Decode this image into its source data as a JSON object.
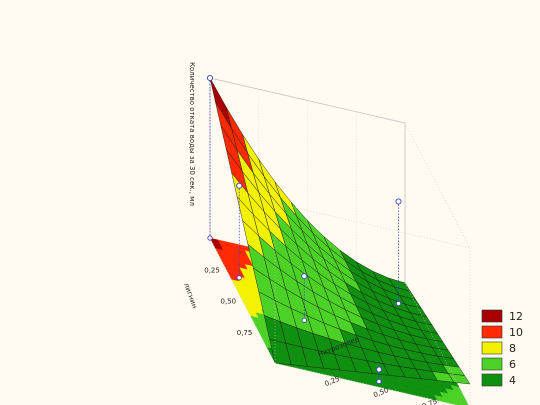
{
  "chart_data": {
    "type": "surface",
    "zlabel": "Количество отката воды за 30 сек., мл",
    "xlabel": "Нитрозолер",
    "ylabel": "лигнин",
    "x_ticks": [
      "0,25",
      "0,50",
      "0,75"
    ],
    "y_ticks": [
      "0,25",
      "0,50",
      "0,75"
    ],
    "xlim": [
      0,
      1
    ],
    "ylim": [
      0,
      1
    ],
    "zlim": [
      4,
      12
    ],
    "surface_model": "z = 4 + 8 * (1 - x)^2 * (1 - y) + 1.2 * x * y",
    "design_points": [
      {
        "x": 0.0,
        "y": 0.0,
        "z": 12.0
      },
      {
        "x": 0.05,
        "y": 0.3,
        "z": 8.6
      },
      {
        "x": 0.3,
        "y": 0.55,
        "z": 6.2
      },
      {
        "x": 0.9,
        "y": 0.2,
        "z": 9.1
      },
      {
        "x": 0.55,
        "y": 0.95,
        "z": 4.6
      }
    ],
    "legend": [
      {
        "label": "12",
        "color": "#a80000"
      },
      {
        "label": "10",
        "color": "#ff2a00"
      },
      {
        "label": "8",
        "color": "#f2f200"
      },
      {
        "label": "6",
        "color": "#4cd226"
      },
      {
        "label": "4",
        "color": "#109010"
      }
    ],
    "grid": true
  }
}
